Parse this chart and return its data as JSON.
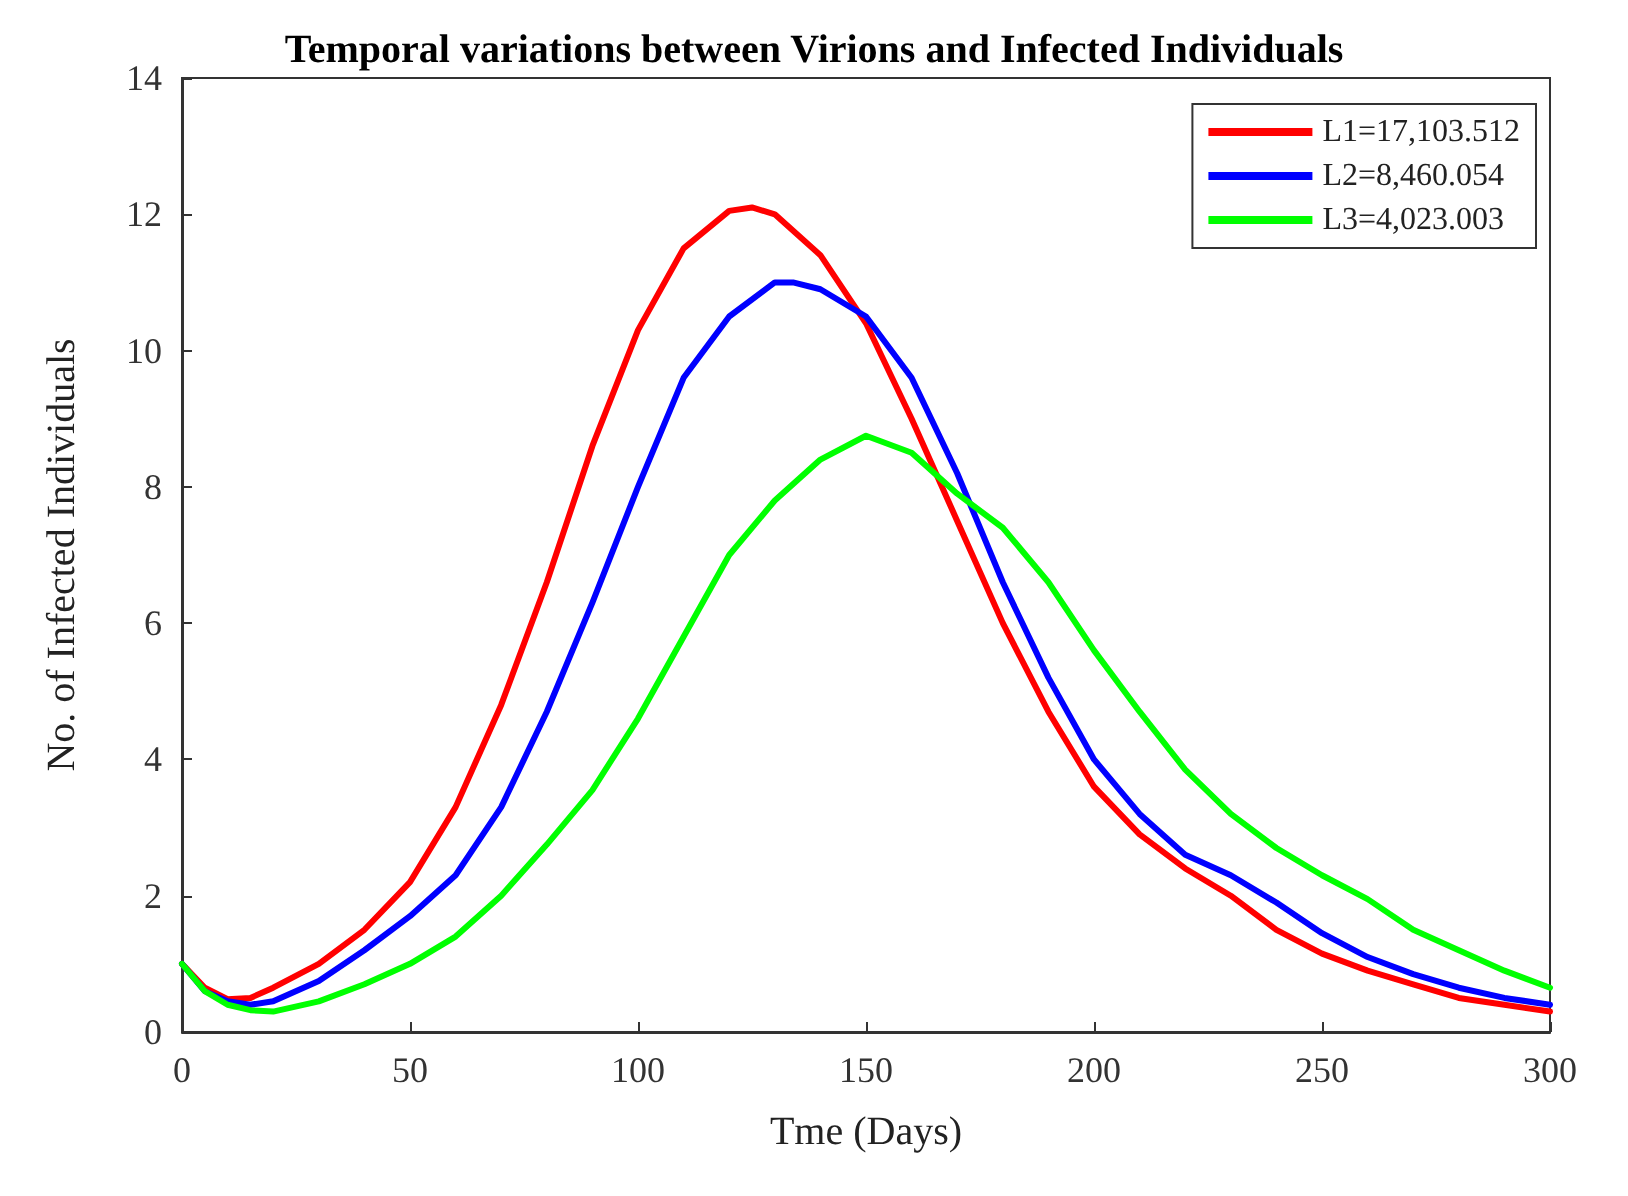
{
  "chart_data": {
    "type": "line",
    "title": "Temporal variations between Virions and Infected Individuals",
    "xlabel": "Tme (Days)",
    "ylabel": "No. of Infected Individuals",
    "xlim": [
      0,
      300
    ],
    "xticks": [
      0,
      50,
      100,
      150,
      200,
      250,
      300
    ],
    "ylim": [
      0,
      14
    ],
    "yticks": [
      0,
      2,
      4,
      6,
      8,
      10,
      12,
      14
    ],
    "grid": false,
    "legend": "top right",
    "marker": "none",
    "line_style": "solid",
    "series": [
      {
        "name": "L1=17,103.512",
        "color": "#ff0000",
        "x": [
          0,
          5,
          10,
          15,
          20,
          30,
          40,
          50,
          60,
          70,
          80,
          90,
          100,
          110,
          120,
          125,
          130,
          140,
          150,
          160,
          170,
          180,
          190,
          200,
          210,
          220,
          230,
          240,
          250,
          260,
          270,
          280,
          290,
          300
        ],
        "values": [
          1,
          0.65,
          0.48,
          0.5,
          0.65,
          1.0,
          1.5,
          2.2,
          3.3,
          4.8,
          6.6,
          8.6,
          10.3,
          11.5,
          12.05,
          12.1,
          12.0,
          11.4,
          10.4,
          9.0,
          7.5,
          6.0,
          4.7,
          3.6,
          2.9,
          2.4,
          2.0,
          1.5,
          1.15,
          0.9,
          0.7,
          0.5,
          0.4,
          0.3
        ]
      },
      {
        "name": "L2=8,460.054",
        "color": "#0000ff",
        "x": [
          0,
          5,
          10,
          15,
          20,
          30,
          40,
          50,
          60,
          70,
          80,
          90,
          100,
          110,
          120,
          130,
          134,
          140,
          150,
          160,
          170,
          180,
          190,
          200,
          210,
          220,
          230,
          240,
          250,
          260,
          270,
          280,
          290,
          300
        ],
        "values": [
          1,
          0.6,
          0.45,
          0.4,
          0.45,
          0.75,
          1.2,
          1.7,
          2.3,
          3.3,
          4.7,
          6.3,
          8.0,
          9.6,
          10.5,
          11.0,
          11.0,
          10.9,
          10.5,
          9.6,
          8.2,
          6.6,
          5.2,
          4.0,
          3.2,
          2.6,
          2.3,
          1.9,
          1.45,
          1.1,
          0.85,
          0.65,
          0.5,
          0.4
        ]
      },
      {
        "name": "L3=4,023.003",
        "color": "#00ff00",
        "x": [
          0,
          5,
          10,
          15,
          20,
          30,
          40,
          50,
          60,
          70,
          80,
          90,
          100,
          110,
          120,
          130,
          140,
          150,
          160,
          170,
          180,
          190,
          200,
          210,
          220,
          230,
          240,
          250,
          260,
          270,
          280,
          290,
          300
        ],
        "values": [
          1,
          0.6,
          0.4,
          0.32,
          0.3,
          0.45,
          0.7,
          1.0,
          1.4,
          2.0,
          2.75,
          3.55,
          4.6,
          5.8,
          7.0,
          7.8,
          8.4,
          8.75,
          8.5,
          7.9,
          7.4,
          6.6,
          5.6,
          4.7,
          3.85,
          3.2,
          2.7,
          2.3,
          1.95,
          1.5,
          1.2,
          0.9,
          0.65
        ]
      }
    ]
  }
}
